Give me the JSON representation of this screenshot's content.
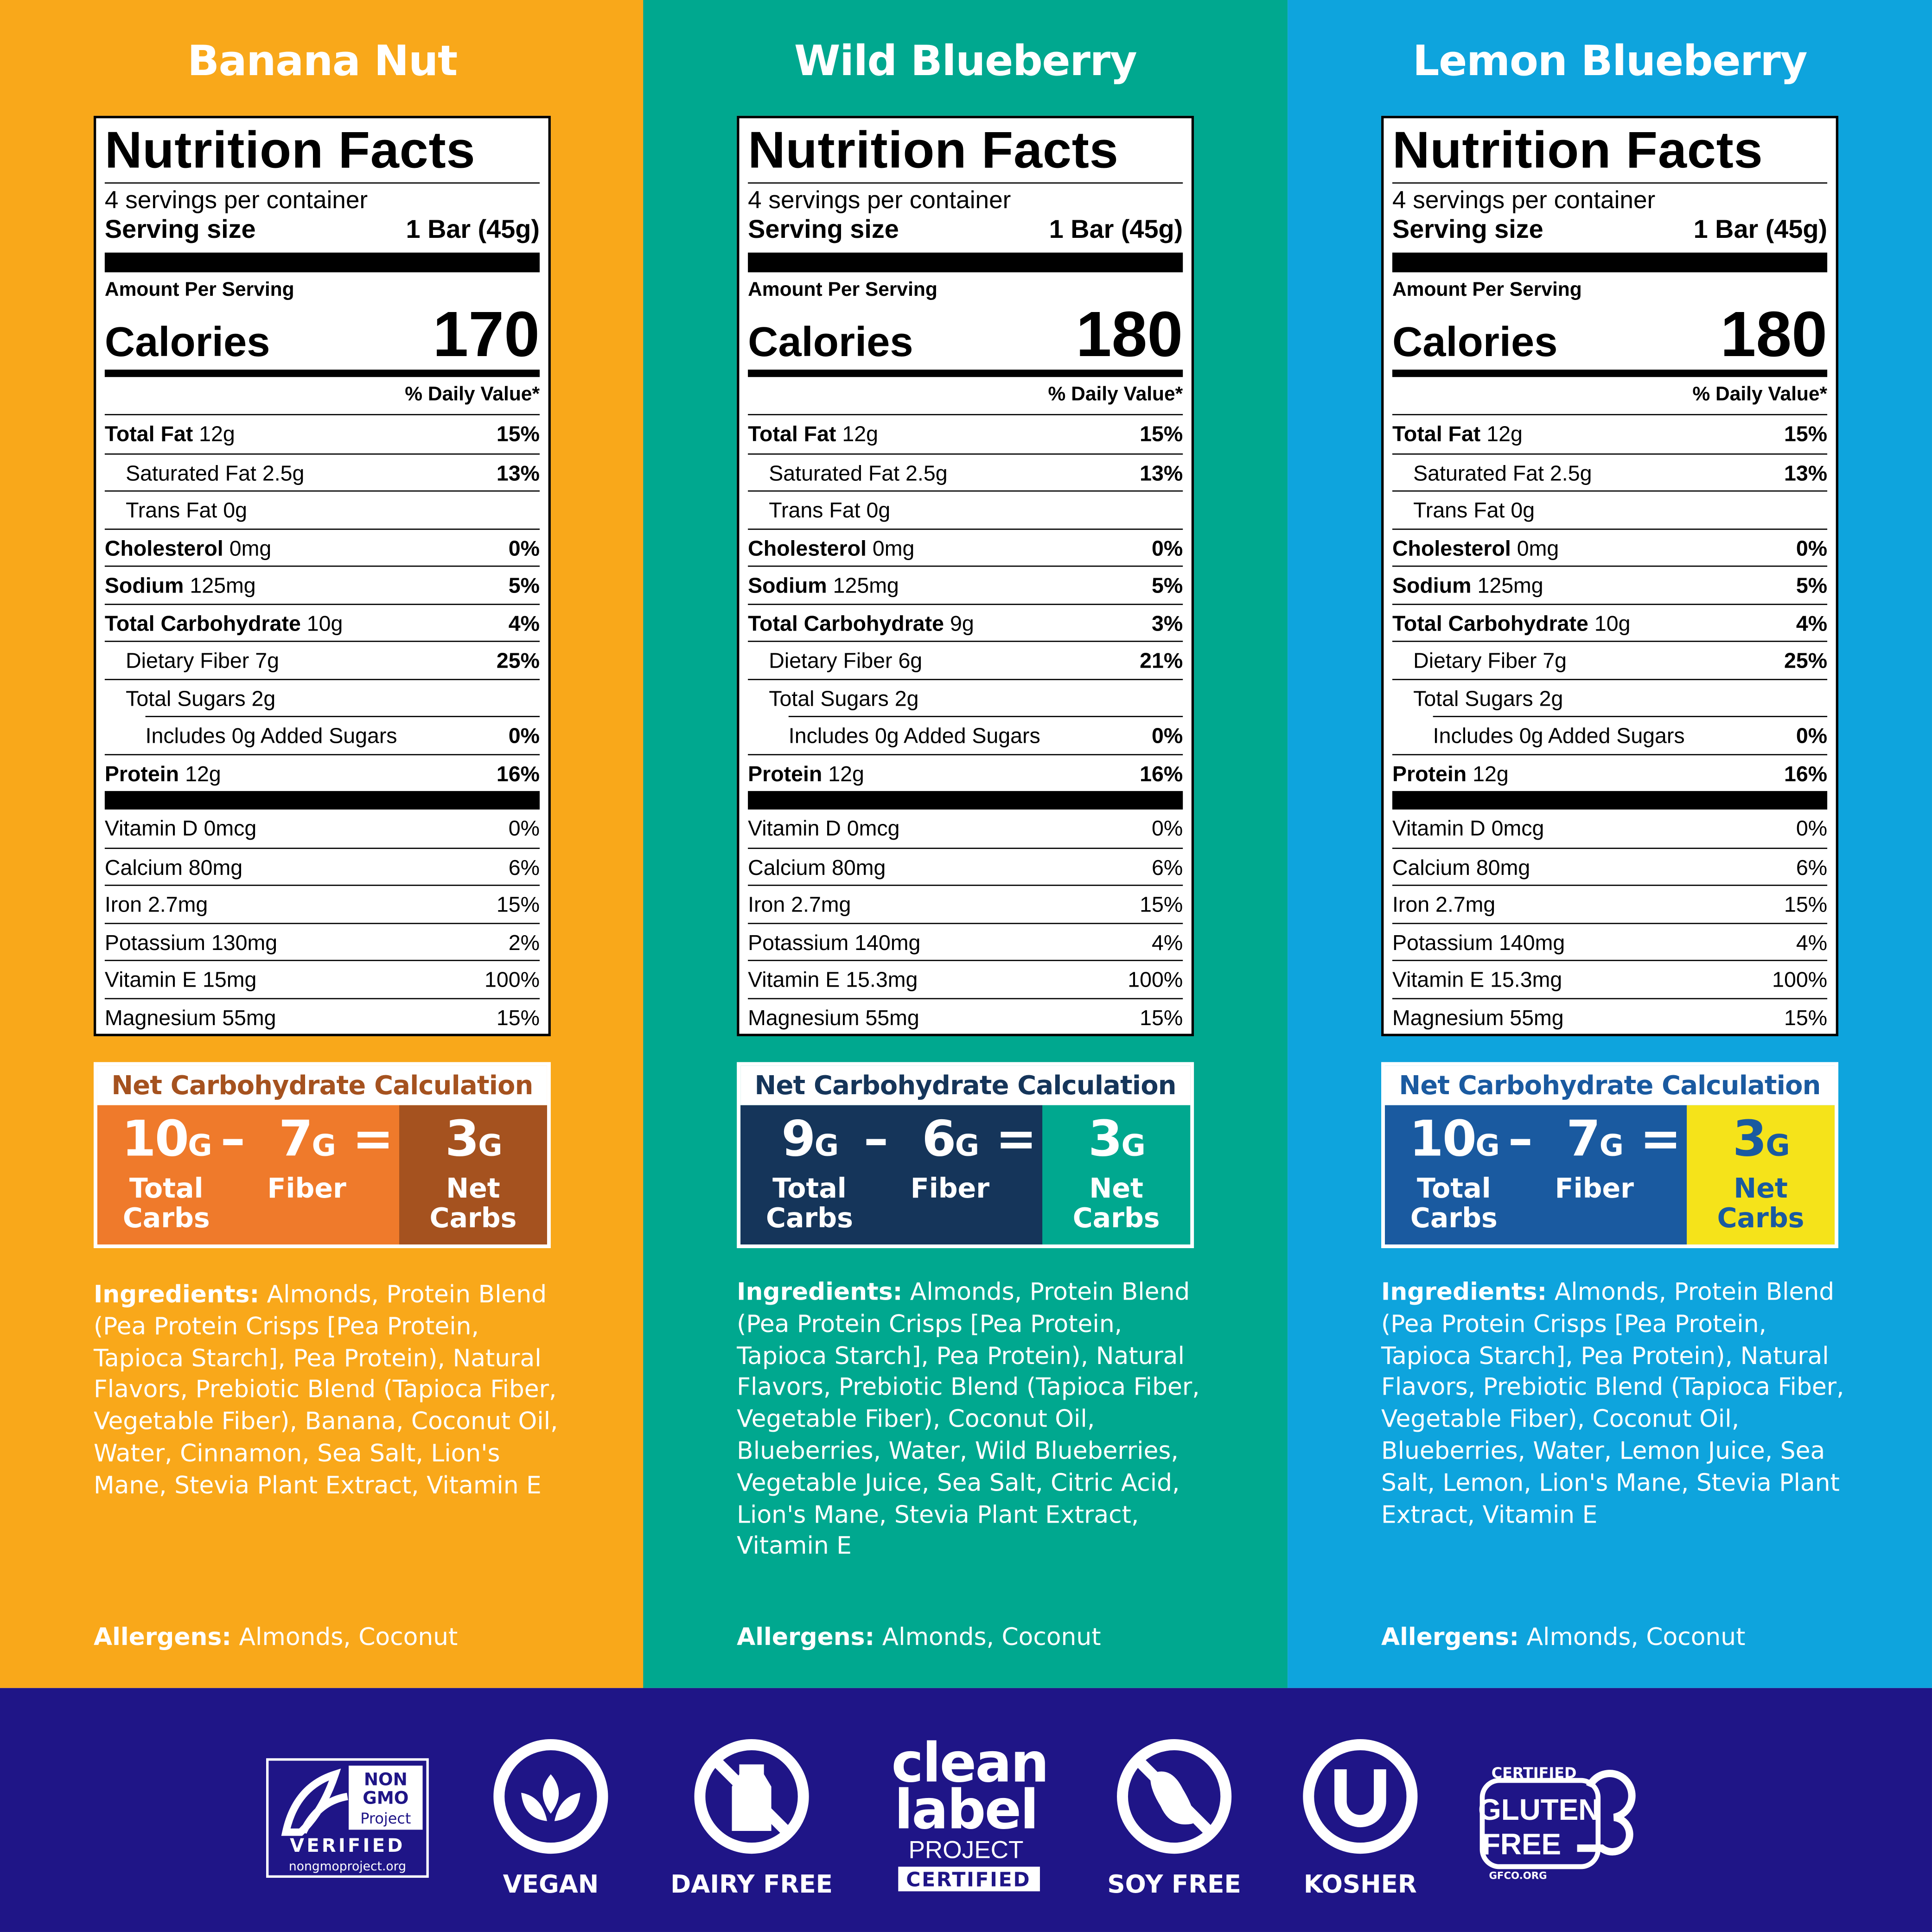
{
  "panels": [
    {
      "name": "Banana Nut",
      "facts": {
        "title": "Nutrition Facts",
        "servings": "4 servings per container",
        "serving_size_label": "Serving size",
        "serving_size": "1 Bar (45g)",
        "amount_label": "Amount Per Serving",
        "calories_label": "Calories",
        "calories": "170",
        "dv_header": "% Daily Value*",
        "rows": [
          {
            "label": "Total Fat",
            "amount": "12g",
            "dv": "15%"
          },
          {
            "label": "Saturated Fat",
            "amount": "2.5g",
            "dv": "13%"
          },
          {
            "label": "Trans Fat",
            "amount": "0g"
          },
          {
            "label": "Cholesterol",
            "amount": "0mg",
            "dv": "0%"
          },
          {
            "label": "Sodium",
            "amount": "125mg",
            "dv": "5%"
          },
          {
            "label": "Total Carbohydrate",
            "amount": "10g",
            "dv": "4%"
          },
          {
            "label": "Dietary Fiber",
            "amount": "7g",
            "dv": "25%"
          },
          {
            "label": "Total Sugars",
            "amount": "2g"
          },
          {
            "label": "Includes 0g Added Sugars",
            "dv": "0%"
          },
          {
            "label": "Protein",
            "amount": "12g",
            "dv": "16%"
          }
        ],
        "vitamins": [
          {
            "label": "Vitamin D 0mcg",
            "dv": "0%"
          },
          {
            "label": "Calcium 80mg",
            "dv": "6%"
          },
          {
            "label": "Iron 2.7mg",
            "dv": "15%"
          },
          {
            "label": "Potassium 130mg",
            "dv": "2%"
          },
          {
            "label": "Vitamin E 15mg",
            "dv": "100%"
          },
          {
            "label": "Magnesium 55mg",
            "dv": "15%"
          }
        ]
      },
      "net_carbs": {
        "title": "Net Carbohydrate Calculation",
        "total": "10",
        "fiber": "7",
        "net": "3",
        "unit": "G",
        "minus": "–",
        "equals": "=",
        "total_label": "Total Carbs",
        "fiber_label": "Fiber",
        "net_label": "Net Carbs"
      },
      "ingredients_label": "Ingredients:",
      "ingredients": "Almonds, Protein Blend (Pea Protein Crisps [Pea Protein, Tapioca Starch], Pea Protein), Natural Flavors, Prebiotic Blend (Tapioca Fiber, Vegetable Fiber), Banana, Coconut Oil, Water, Cinnamon, Sea Salt, Lion's Mane, Stevia Plant Extract, Vitamin E",
      "allergens_label": "Allergens:",
      "allergens": "Almonds, Coconut"
    },
    {
      "name": "Wild Blueberry",
      "facts": {
        "title": "Nutrition Facts",
        "servings": "4 servings per container",
        "serving_size_label": "Serving size",
        "serving_size": "1 Bar (45g)",
        "amount_label": "Amount Per Serving",
        "calories_label": "Calories",
        "calories": "180",
        "dv_header": "% Daily Value*",
        "rows": [
          {
            "label": "Total Fat",
            "amount": "12g",
            "dv": "15%"
          },
          {
            "label": "Saturated Fat",
            "amount": "2.5g",
            "dv": "13%"
          },
          {
            "label": "Trans Fat",
            "amount": "0g"
          },
          {
            "label": "Cholesterol",
            "amount": "0mg",
            "dv": "0%"
          },
          {
            "label": "Sodium",
            "amount": "125mg",
            "dv": "5%"
          },
          {
            "label": "Total Carbohydrate",
            "amount": "9g",
            "dv": "3%"
          },
          {
            "label": "Dietary Fiber",
            "amount": "6g",
            "dv": "21%"
          },
          {
            "label": "Total Sugars",
            "amount": "2g"
          },
          {
            "label": "Includes 0g Added Sugars",
            "dv": "0%"
          },
          {
            "label": "Protein",
            "amount": "12g",
            "dv": "16%"
          }
        ],
        "vitamins": [
          {
            "label": "Vitamin D 0mcg",
            "dv": "0%"
          },
          {
            "label": "Calcium 80mg",
            "dv": "6%"
          },
          {
            "label": "Iron 2.7mg",
            "dv": "15%"
          },
          {
            "label": "Potassium 140mg",
            "dv": "4%"
          },
          {
            "label": "Vitamin E 15.3mg",
            "dv": "100%"
          },
          {
            "label": "Magnesium 55mg",
            "dv": "15%"
          }
        ]
      },
      "net_carbs": {
        "title": "Net Carbohydrate Calculation",
        "total": "9",
        "fiber": "6",
        "net": "3",
        "unit": "G",
        "minus": "–",
        "equals": "=",
        "total_label": "Total Carbs",
        "fiber_label": "Fiber",
        "net_label": "Net Carbs"
      },
      "ingredients_label": "Ingredients:",
      "ingredients": "Almonds, Protein Blend (Pea Protein Crisps [Pea Protein, Tapioca Starch], Pea Protein), Natural Flavors, Prebiotic Blend (Tapioca Fiber, Vegetable Fiber), Coconut Oil, Blueberries, Water, Wild Blueberries, Vegetable Juice, Sea Salt, Citric Acid, Lion's Mane, Stevia Plant Extract, Vitamin E",
      "allergens_label": "Allergens:",
      "allergens": "Almonds, Coconut"
    },
    {
      "name": "Lemon Blueberry",
      "facts": {
        "title": "Nutrition Facts",
        "servings": "4 servings per container",
        "serving_size_label": "Serving size",
        "serving_size": "1 Bar (45g)",
        "amount_label": "Amount Per Serving",
        "calories_label": "Calories",
        "calories": "180",
        "dv_header": "% Daily Value*",
        "rows": [
          {
            "label": "Total Fat",
            "amount": "12g",
            "dv": "15%"
          },
          {
            "label": "Saturated Fat",
            "amount": "2.5g",
            "dv": "13%"
          },
          {
            "label": "Trans Fat",
            "amount": "0g"
          },
          {
            "label": "Cholesterol",
            "amount": "0mg",
            "dv": "0%"
          },
          {
            "label": "Sodium",
            "amount": "125mg",
            "dv": "5%"
          },
          {
            "label": "Total Carbohydrate",
            "amount": "10g",
            "dv": "4%"
          },
          {
            "label": "Dietary Fiber",
            "amount": "7g",
            "dv": "25%"
          },
          {
            "label": "Total Sugars",
            "amount": "2g"
          },
          {
            "label": "Includes 0g Added Sugars",
            "dv": "0%"
          },
          {
            "label": "Protein",
            "amount": "12g",
            "dv": "16%"
          }
        ],
        "vitamins": [
          {
            "label": "Vitamin D 0mcg",
            "dv": "0%"
          },
          {
            "label": "Calcium 80mg",
            "dv": "6%"
          },
          {
            "label": "Iron 2.7mg",
            "dv": "15%"
          },
          {
            "label": "Potassium 140mg",
            "dv": "4%"
          },
          {
            "label": "Vitamin E 15.3mg",
            "dv": "100%"
          },
          {
            "label": "Magnesium 55mg",
            "dv": "15%"
          }
        ]
      },
      "net_carbs": {
        "title": "Net Carbohydrate Calculation",
        "total": "10",
        "fiber": "7",
        "net": "3",
        "unit": "G",
        "minus": "–",
        "equals": "=",
        "total_label": "Total Carbs",
        "fiber_label": "Fiber",
        "net_label": "Net Carbs"
      },
      "ingredients_label": "Ingredients:",
      "ingredients": "Almonds, Protein Blend (Pea Protein Crisps [Pea Protein, Tapioca Starch], Pea Protein), Natural Flavors, Prebiotic Blend (Tapioca Fiber, Vegetable Fiber), Coconut Oil, Blueberries, Water, Lemon Juice, Sea Salt, Lemon, Lion's Mane, Stevia Plant Extract, Vitamin E",
      "allergens_label": "Allergens:",
      "allergens": "Almonds, Coconut"
    }
  ],
  "certifications": {
    "non_gmo": [
      "NON",
      "GMO",
      "Project",
      "VERIFIED",
      "nongmoproject.org"
    ],
    "vegan": "VEGAN",
    "dairy_free": "DAIRY FREE",
    "clean_label": [
      "clean",
      "label",
      "PROJECT",
      "CERTIFIED"
    ],
    "soy_free": "SOY FREE",
    "kosher": "KOSHER",
    "gluten_free": [
      "CERTIFIED",
      "GLUTEN",
      "FREE",
      "GFCO.ORG"
    ]
  }
}
